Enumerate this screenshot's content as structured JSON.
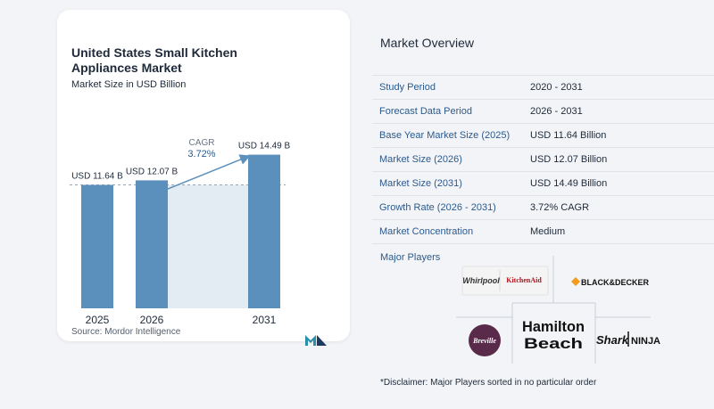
{
  "chart": {
    "title": "United States Small Kitchen Appliances Market",
    "subtitle": "Market Size in USD Billion",
    "source": "Source: Mordor Intelligence",
    "cagr_label": "CAGR",
    "cagr_value": "3.72%"
  },
  "chart_data": {
    "type": "bar",
    "title": "United States Small Kitchen Appliances Market",
    "subtitle": "Market Size in USD Billion",
    "categories": [
      "2025",
      "2026",
      "2031"
    ],
    "values": [
      11.64,
      12.07,
      14.49
    ],
    "value_labels": [
      "USD 11.64 B",
      "USD 12.07 B",
      "USD 14.49 B"
    ],
    "annotation": "CAGR 3.72%",
    "xlabel": "",
    "ylabel": "",
    "grid": false,
    "colors": {
      "bar": "#5b8fbc",
      "highlight": "#e3ebf3",
      "arrow": "#5b8fbc",
      "dashed_line": "#9aa4b2"
    }
  },
  "overview": {
    "title": "Market Overview",
    "rows": [
      {
        "label": "Study Period",
        "value": "2020 - 2031"
      },
      {
        "label": "Forecast Data Period",
        "value": "2026 - 2031"
      },
      {
        "label": "Base Year Market Size (2025)",
        "value": "USD 11.64 Billion"
      },
      {
        "label": "Market Size (2026)",
        "value": "USD 12.07 Billion"
      },
      {
        "label": "Market Size (2031)",
        "value": "USD 14.49 Billion"
      },
      {
        "label": "Growth Rate (2026 - 2031)",
        "value": "3.72% CAGR"
      },
      {
        "label": "Market Concentration",
        "value": "Medium"
      }
    ]
  },
  "players": {
    "title": "Major Players",
    "logos": {
      "whirlpool": "Whirlpool",
      "kitchenaid": "KitchenAid",
      "blackdecker": "BLACK&DECKER",
      "breville": "Breville",
      "hamilton_1": "Hamilton",
      "hamilton_2": "Beach",
      "shark": "Shark",
      "ninja": "NINJA"
    },
    "disclaimer": "*Disclaimer: Major Players sorted in no particular order"
  },
  "colors": {
    "label_blue": "#2c5a8c",
    "bar_blue": "#5b8fbc",
    "breville_purple": "#5a2a4a"
  }
}
